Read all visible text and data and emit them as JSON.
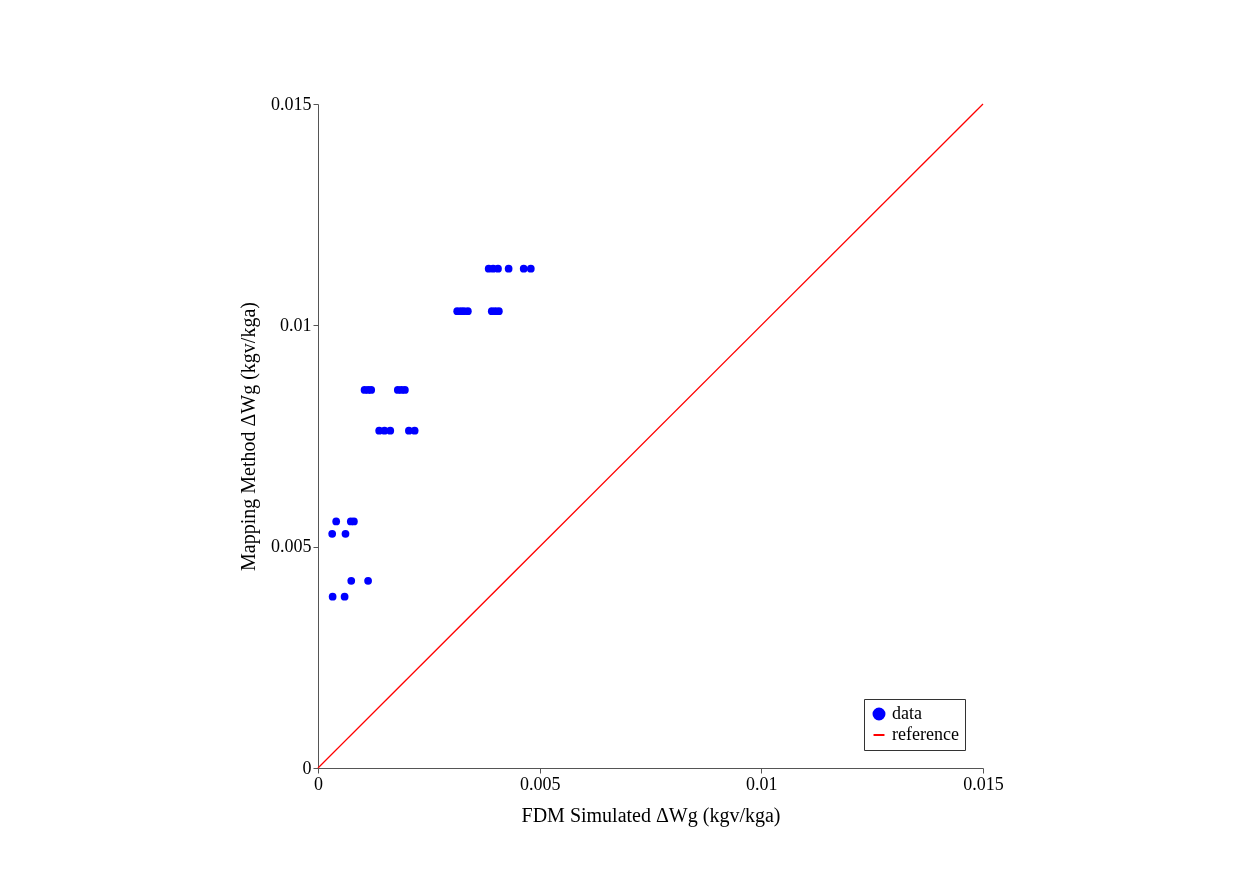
{
  "chart_data": {
    "type": "scatter",
    "xlabel": "FDM Simulated ΔWg (kgv/kga)",
    "ylabel": "Mapping Method ΔWg (kgv/kga)",
    "xlim": [
      0,
      0.015
    ],
    "ylim": [
      0,
      0.015
    ],
    "xticks": [
      0,
      0.005,
      0.01,
      0.015
    ],
    "yticks": [
      0,
      0.005,
      0.01,
      0.015
    ],
    "grid": false,
    "legend": "bottom right",
    "series": [
      {
        "name": "data",
        "type": "scatter",
        "color": "#0000ff",
        "marker": "circle",
        "x": [
          0.00385,
          0.00395,
          0.00406,
          0.0043,
          0.00464,
          0.0048,
          0.00314,
          0.00322,
          0.00329,
          0.00338,
          0.00392,
          0.004,
          0.00408,
          0.00105,
          0.00113,
          0.0012,
          0.0018,
          0.00188,
          0.00196,
          0.00138,
          0.0015,
          0.00163,
          0.00205,
          0.00218,
          0.00041,
          0.00074,
          0.00081,
          0.00032,
          0.00062,
          0.00075,
          0.00113,
          0.00033,
          0.0006
        ],
        "values": [
          0.01128,
          0.01128,
          0.01128,
          0.01128,
          0.01128,
          0.01128,
          0.01032,
          0.01032,
          0.01032,
          0.01032,
          0.01032,
          0.01032,
          0.01032,
          0.00854,
          0.00854,
          0.00854,
          0.00854,
          0.00854,
          0.00854,
          0.00762,
          0.00762,
          0.00762,
          0.00762,
          0.00762,
          0.00557,
          0.00557,
          0.00557,
          0.00529,
          0.00529,
          0.00423,
          0.00423,
          0.00387,
          0.00387
        ]
      },
      {
        "name": "reference",
        "type": "line",
        "color": "#ff0000",
        "line_style": "solid",
        "marker": "none",
        "x": [
          0,
          0.015
        ],
        "values": [
          0,
          0.015
        ]
      }
    ]
  }
}
